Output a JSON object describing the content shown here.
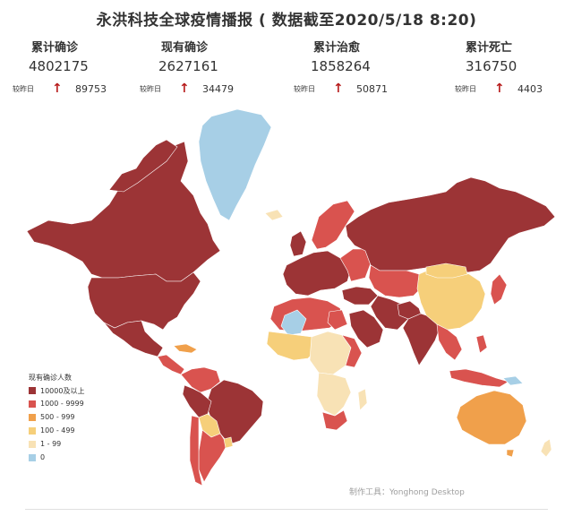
{
  "title": "永洪科技全球疫情播报 ( 数据截至2020/5/18 8:20)",
  "stats": [
    {
      "label": "累计确诊",
      "value": "4802175",
      "delta_label": "较昨日",
      "delta_arrow": "↑",
      "delta": "89753"
    },
    {
      "label": "现有确诊",
      "value": "2627161",
      "delta_label": "较昨日",
      "delta_arrow": "↑",
      "delta": "34479"
    },
    {
      "label": "累计治愈",
      "value": "1858264",
      "delta_label": "较昨日",
      "delta_arrow": "↑",
      "delta": "50871"
    },
    {
      "label": "累计死亡",
      "value": "316750",
      "delta_label": "较昨日",
      "delta_arrow": "↑",
      "delta": "4403"
    }
  ],
  "legend": {
    "title": "现有确诊人数",
    "items": [
      {
        "label": "10000及以上",
        "color": "#9c3436"
      },
      {
        "label": "1000 - 9999",
        "color": "#d9534f"
      },
      {
        "label": "500 - 999",
        "color": "#f0a04b"
      },
      {
        "label": "100 - 499",
        "color": "#f6cf7a"
      },
      {
        "label": "1 - 99",
        "color": "#f8e2b5"
      },
      {
        "label": "0",
        "color": "#a7cfe6"
      }
    ]
  },
  "credit": "制作工具：Yonghong Desktop"
}
